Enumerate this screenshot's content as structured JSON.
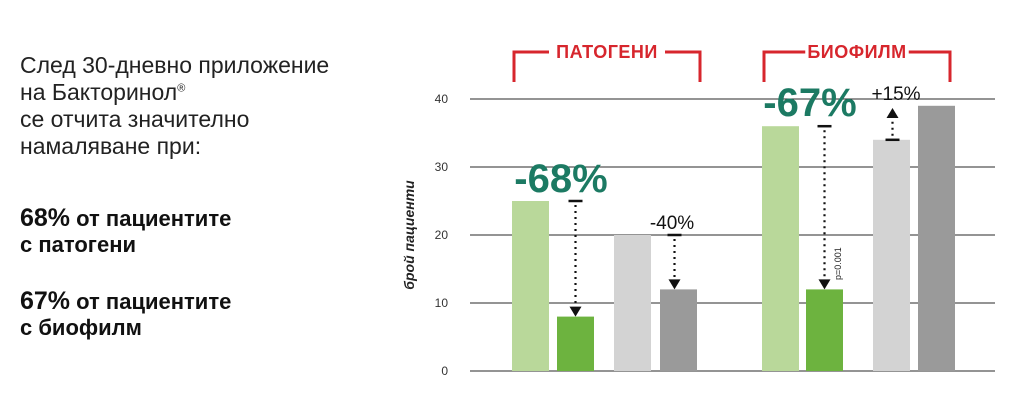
{
  "intro": {
    "line1": "След 30-дневно приложение",
    "line2_text": "на Бакторинол",
    "line2_mark": "®",
    "line3": "се отчита значително",
    "line4": "намаляване при:"
  },
  "stats": [
    {
      "value": "68%",
      "line1": " от пациентите",
      "line2": "с патогени"
    },
    {
      "value": "67%",
      "line1": " от пациентите",
      "line2": "с биофилм"
    }
  ],
  "chart_data": {
    "type": "bar",
    "ylabel": "брой пациенти",
    "ylim": [
      0,
      40
    ],
    "yticks": [
      "0",
      "10",
      "20",
      "30",
      "40"
    ],
    "groups": [
      {
        "label": "ПАТОГЕНИ",
        "bars": [
          25,
          8,
          20,
          12
        ],
        "changes": [
          "-68%",
          "-40%"
        ]
      },
      {
        "label": "БИОФИЛМ",
        "bars": [
          36,
          12,
          34,
          39
        ],
        "changes": [
          "-67%",
          "+15%"
        ],
        "note": "p=0.001"
      }
    ],
    "bar_colors": [
      "#b9d89a",
      "#6db33f",
      "#d3d3d3",
      "#9a9a9a"
    ],
    "accent_colors": {
      "group_label": "#d7262d",
      "big_change": "#1c7a63"
    },
    "grid": true
  }
}
